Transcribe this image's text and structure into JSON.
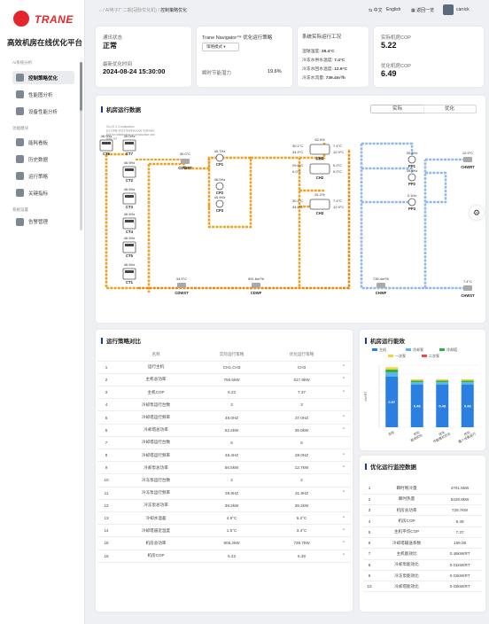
{
  "brand": {
    "logo_text": "TRANE",
    "platform_title": "高效机房在线优化平台"
  },
  "sidebar": {
    "section_ai": "AI系统分析",
    "section_fn": "功能模块",
    "section_sys": "系统设置",
    "items": [
      {
        "label": "控制策略优化",
        "icon": "strategy-icon"
      },
      {
        "label": "性能图分析",
        "icon": "chart-icon"
      },
      {
        "label": "设备性能分析",
        "icon": "device-icon"
      },
      {
        "label": "能耗看板",
        "icon": "dashboard-icon"
      },
      {
        "label": "历史数据",
        "icon": "history-icon"
      },
      {
        "label": "运行策略",
        "icon": "policy-icon"
      },
      {
        "label": "关键指标",
        "icon": "kpi-icon"
      },
      {
        "label": "告警管理",
        "icon": "alarm-icon"
      }
    ]
  },
  "topbar": {
    "crumb_prefix": "⌂ / AI电子厂二期(冠脉优化机) /",
    "crumb_current": "控制策略优化",
    "lang_zh": "中文",
    "lang_en": "English",
    "home_label": "返回一览",
    "user": "carrick"
  },
  "status": {
    "run_status_label": "通讯状态",
    "run_status": "正常",
    "time_label": "最新优化时间",
    "time": "2024-08-24 15:30:00",
    "strategy_title": "Trane Navigator™ 优化运行策略",
    "strategy_select": "策略模式",
    "saving_label": "瞬时节能潜力",
    "saving": "19.6%",
    "cond_title": "系统实际运行工况",
    "cond_rows": [
      {
        "label": "湿球温度:",
        "value": "28.4°C"
      },
      {
        "label": "冷冻水供水温度:",
        "value": "7.4°C"
      },
      {
        "label": "冷冻水回水温度:",
        "value": "12.9°C"
      },
      {
        "label": "冷冻水流量:",
        "value": "739.4m³/h"
      }
    ],
    "actual_cop_label": "实际机房COP",
    "actual_cop": "5.22",
    "opt_cop_label": "优化机房COP",
    "opt_cop": "6.49"
  },
  "diagram": {
    "title": "机房运行数据",
    "tab_actual": "实际",
    "tab_opt": "优化",
    "watermark": [
      "Go.JS 2.3 evaluation",
      "(c) 1998-2023 Northwoods Software",
      "Not for distribution or production use",
      "gojs.net"
    ],
    "ct_names": [
      "CT6",
      "CT7",
      "CT2",
      "CT3",
      "CT4",
      "CT5",
      "CT1"
    ],
    "ct_freqs": [
      "46.9Hz",
      "40.0Hz",
      "46.9Hz",
      "46.9Hz",
      "46.9Hz",
      "46.9Hz",
      "46.9Hz"
    ],
    "cp_names": [
      "CP1",
      "CP2",
      "CP3"
    ],
    "cp_freqs": [
      "40.7Hz",
      "46.0Hz",
      "40.9Hz"
    ],
    "ch_names": [
      "CH1",
      "CH2",
      "CH3"
    ],
    "ch_loads": [
      "62.9%",
      "0.0%",
      "61.2%"
    ],
    "ch_cond_in": [
      "30.1°C",
      "29.6°C",
      "30.1°C"
    ],
    "ch_cond_out": [
      "34.9°C",
      "0.0°C",
      "34.5°C"
    ],
    "ch_evap_out": [
      "7.4°C",
      "0.0°C",
      "7.4°C"
    ],
    "ch_evap_in": [
      "12.9°C",
      "0.0°C",
      "12.9°C"
    ],
    "pp_names": [
      "PP1",
      "PP2",
      "PP3"
    ],
    "pp_freqs": [
      "39.8Hz",
      "39.9Hz",
      "0.1Hz"
    ],
    "cdwrt": {
      "name": "CDWRT",
      "temp": "30.0°C"
    },
    "cdwst": {
      "name": "CDWST",
      "temp": "34.9°C"
    },
    "cdwf": {
      "name": "CDWF",
      "flow": "991.6m³/h"
    },
    "chwrt": {
      "name": "CHWRT",
      "temp": "12.9°C"
    },
    "chwst": {
      "name": "CHWST",
      "temp": "7.4°C"
    },
    "chwf": {
      "name": "CHWF",
      "flow": "739.4m³/h"
    },
    "colors": {
      "condenser": "#f0a020",
      "chilled": "#8fb8ec"
    }
  },
  "compare": {
    "title": "运行策略对比",
    "headers": [
      "名称",
      "实际运行策略",
      "优化运行策略"
    ],
    "rows": [
      {
        "no": "1",
        "name": "运行主机",
        "actual": "CH1,CH3",
        "opt": "CH3",
        "up": true
      },
      {
        "no": "2",
        "name": "主机总功率",
        "actual": "756.5kW",
        "opt": "617.8kW",
        "up": true
      },
      {
        "no": "3",
        "name": "主机COP",
        "actual": "6.22",
        "opt": "7.37",
        "up": true
      },
      {
        "no": "4",
        "name": "冷却泵运行台数",
        "actual": "3",
        "opt": "3",
        "up": false
      },
      {
        "no": "5",
        "name": "冷却塔运行频率",
        "actual": "46.0HZ",
        "opt": "37.0HZ",
        "up": true
      },
      {
        "no": "6",
        "name": "冷却塔总功率",
        "actual": "52.2kW",
        "opt": "39.0kW",
        "up": true
      },
      {
        "no": "7",
        "name": "冷却塔运行台数",
        "actual": "6",
        "opt": "6",
        "up": false
      },
      {
        "no": "8",
        "name": "冷却塔运行频率",
        "actual": "46.4HZ",
        "opt": "28.0HZ",
        "up": true
      },
      {
        "no": "9",
        "name": "冷却泵总功率",
        "actual": "56.5kW",
        "opt": "12.7kW",
        "up": true
      },
      {
        "no": "10",
        "name": "冷冻泵运行台数",
        "actual": "2",
        "opt": "2",
        "up": false
      },
      {
        "no": "11",
        "name": "冷冻泵运行频率",
        "actual": "39.9HZ",
        "opt": "31.9HZ",
        "up": true
      },
      {
        "no": "12",
        "name": "冷冻泵总功率",
        "actual": "39.2kW",
        "opt": "39.2kW",
        "up": false
      },
      {
        "no": "13",
        "name": "冷却水温差",
        "actual": "4.9°C",
        "opt": "6.2°C",
        "up": true
      },
      {
        "no": "14",
        "name": "冷却塔逼近温度",
        "actual": "1.5°C",
        "opt": "3.4°C",
        "up": true
      },
      {
        "no": "15",
        "name": "机房总功率",
        "actual": "906.2kW",
        "opt": "728.7kW",
        "up": true
      },
      {
        "no": "16",
        "name": "机房COP",
        "actual": "5.22",
        "opt": "6.49",
        "up": true
      }
    ]
  },
  "energy": {
    "title": "机房运行能效",
    "legend": [
      {
        "name": "主机",
        "color": "#2b7fe0"
      },
      {
        "name": "冷却泵",
        "color": "#5ab4f0"
      },
      {
        "name": "冷却塔",
        "color": "#2fb24a"
      },
      {
        "name": "一次泵",
        "color": "#f4d23c"
      },
      {
        "name": "二次泵",
        "color": "#e94b4b"
      }
    ],
    "ylabel": "kW/RT",
    "categories": [
      "实际",
      "优化\n能效优化",
      "优化\n节能模式优化",
      "优化\n最少设备运行"
    ],
    "series_main": [
      0.57,
      0.48,
      0.48,
      0.48
    ],
    "totals": [
      0.677,
      0.542,
      0.542,
      0.542
    ],
    "ylim": [
      0,
      0.7
    ]
  },
  "monitor": {
    "title": "优化运行监控数据",
    "rows": [
      {
        "no": "1",
        "name": "瞬时制冷量",
        "value": "4701.5kW"
      },
      {
        "no": "2",
        "name": "瞬时热量",
        "value": "5429.8kW"
      },
      {
        "no": "3",
        "name": "机房总功率",
        "value": "728.7kW"
      },
      {
        "no": "4",
        "name": "机房COP",
        "value": "6.49"
      },
      {
        "no": "5",
        "name": "主机平均COP",
        "value": "7.37"
      },
      {
        "no": "6",
        "name": "冷却塔输送系数",
        "value": "159.08"
      },
      {
        "no": "7",
        "name": "主机能效比",
        "value": "0.46kW/RT"
      },
      {
        "no": "8",
        "name": "冷却泵能效比",
        "value": "0.01kW/RT"
      },
      {
        "no": "9",
        "name": "冷冻泵能效比",
        "value": "0.03kW/RT"
      },
      {
        "no": "10",
        "name": "冷却塔能效比",
        "value": "0.03kW/RT"
      }
    ]
  }
}
